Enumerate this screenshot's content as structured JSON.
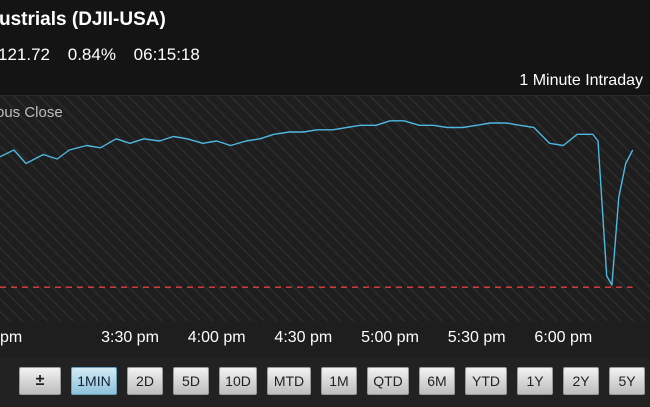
{
  "header": {
    "title": "ustrials (DJII-USA)",
    "change": "121.72",
    "change_pct": "0.84%",
    "time": "06:15:18",
    "interval": "1 Minute Intraday"
  },
  "chart_data": {
    "type": "line",
    "reference_line_label": "ous Close",
    "x_tick_labels": [
      "pm",
      "3:30 pm",
      "4:00 pm",
      "4:30 pm",
      "5:00 pm",
      "5:30 pm",
      "6:00 pm"
    ],
    "x_tick_times": [
      2.92,
      3.5,
      4.0,
      4.5,
      5.0,
      5.5,
      6.0
    ],
    "x_range": [
      2.75,
      6.5
    ],
    "y_range": [
      0,
      100
    ],
    "series": [
      {
        "color": "#4fb8e0",
        "points": [
          [
            2.75,
            73
          ],
          [
            2.83,
            76
          ],
          [
            2.9,
            70
          ],
          [
            3.0,
            74
          ],
          [
            3.08,
            72
          ],
          [
            3.15,
            76
          ],
          [
            3.25,
            78
          ],
          [
            3.33,
            77
          ],
          [
            3.42,
            81
          ],
          [
            3.5,
            79
          ],
          [
            3.58,
            81
          ],
          [
            3.67,
            80
          ],
          [
            3.75,
            82
          ],
          [
            3.83,
            81
          ],
          [
            3.92,
            79
          ],
          [
            4.0,
            80
          ],
          [
            4.08,
            78
          ],
          [
            4.17,
            80
          ],
          [
            4.25,
            81
          ],
          [
            4.33,
            83
          ],
          [
            4.42,
            84
          ],
          [
            4.5,
            84
          ],
          [
            4.58,
            85
          ],
          [
            4.67,
            85
          ],
          [
            4.75,
            86
          ],
          [
            4.83,
            87
          ],
          [
            4.92,
            87
          ],
          [
            5.0,
            89
          ],
          [
            5.08,
            89
          ],
          [
            5.17,
            87
          ],
          [
            5.25,
            87
          ],
          [
            5.33,
            86
          ],
          [
            5.42,
            86
          ],
          [
            5.5,
            87
          ],
          [
            5.58,
            88
          ],
          [
            5.67,
            88
          ],
          [
            5.75,
            87
          ],
          [
            5.83,
            86
          ],
          [
            5.92,
            79
          ],
          [
            6.0,
            78
          ],
          [
            6.08,
            83
          ],
          [
            6.17,
            83
          ],
          [
            6.2,
            80
          ],
          [
            6.25,
            20
          ],
          [
            6.28,
            16
          ],
          [
            6.32,
            55
          ],
          [
            6.36,
            70
          ],
          [
            6.4,
            76
          ]
        ]
      }
    ],
    "baseline": {
      "value": 15,
      "color": "#d43a3a"
    },
    "background_pattern": "diagonal-hatch"
  },
  "toolbar": {
    "buttons": [
      {
        "label": "±",
        "active": false,
        "icon": "zoom-toggle-icon"
      },
      {
        "label": "1MIN",
        "active": true
      },
      {
        "label": "2D",
        "active": false
      },
      {
        "label": "5D",
        "active": false
      },
      {
        "label": "10D",
        "active": false
      },
      {
        "label": "MTD",
        "active": false
      },
      {
        "label": "1M",
        "active": false
      },
      {
        "label": "QTD",
        "active": false
      },
      {
        "label": "6M",
        "active": false
      },
      {
        "label": "YTD",
        "active": false
      },
      {
        "label": "1Y",
        "active": false
      },
      {
        "label": "2Y",
        "active": false
      },
      {
        "label": "5Y",
        "active": false
      }
    ]
  }
}
